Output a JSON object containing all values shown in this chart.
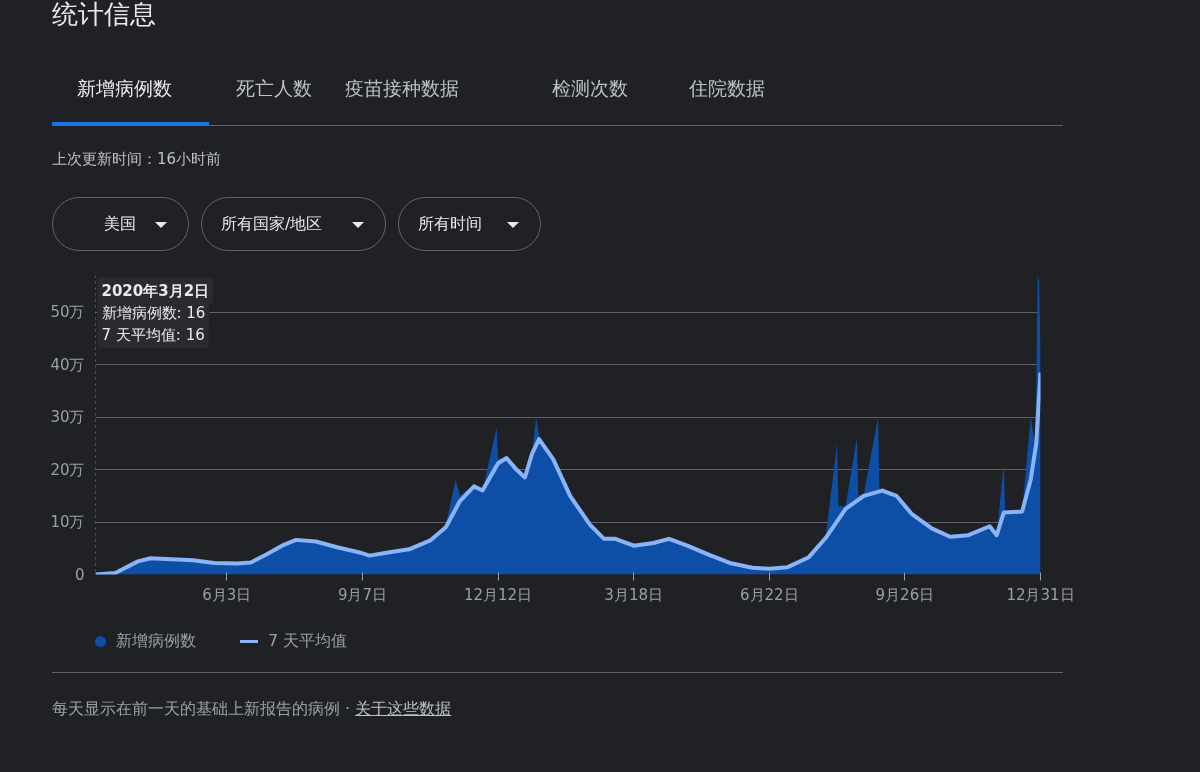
{
  "chart_data": {
    "type": "area",
    "title": "统计信息",
    "xlim": [
      "2020-03-02",
      "2021-12-31"
    ],
    "xticks": [
      {
        "value": "2020-06-03",
        "label": "6月3日"
      },
      {
        "value": "2020-09-07",
        "label": "9月7日"
      },
      {
        "value": "2020-12-12",
        "label": "12月12日"
      },
      {
        "value": "2021-03-18",
        "label": "3月18日"
      },
      {
        "value": "2021-06-22",
        "label": "6月22日"
      },
      {
        "value": "2021-09-26",
        "label": "9月26日"
      },
      {
        "value": "2021-12-31",
        "label": "12月31日"
      }
    ],
    "ylim": [
      0,
      57
    ],
    "yticks": [
      0,
      {
        "value": 10,
        "label": "10万"
      },
      {
        "value": 20,
        "label": "20万"
      },
      {
        "value": 30,
        "label": "30万"
      },
      {
        "value": 40,
        "label": "40万"
      },
      {
        "value": 50,
        "label": "50万"
      }
    ],
    "grid": "y",
    "legend": "bottom left",
    "series": [
      {
        "name": "新增病例数",
        "color": "#0d4ea6",
        "x": [
          "2020-03-02",
          "2020-03-16",
          "2020-04-01",
          "2020-04-10",
          "2020-04-25",
          "2020-05-10",
          "2020-05-25",
          "2020-06-10",
          "2020-06-20",
          "2020-07-01",
          "2020-07-12",
          "2020-07-22",
          "2020-08-05",
          "2020-08-20",
          "2020-09-05",
          "2020-09-12",
          "2020-09-25",
          "2020-10-10",
          "2020-10-25",
          "2020-11-05",
          "2020-11-12",
          "2020-11-15",
          "2020-11-25",
          "2020-12-01",
          "2020-12-11",
          "2020-12-12",
          "2020-12-18",
          "2020-12-25",
          "2020-12-31",
          "2021-01-05",
          "2021-01-08",
          "2021-01-10",
          "2021-01-20",
          "2021-02-01",
          "2021-02-15",
          "2021-02-25",
          "2021-03-05",
          "2021-03-18",
          "2021-04-01",
          "2021-04-12",
          "2021-04-25",
          "2021-05-10",
          "2021-05-25",
          "2021-06-10",
          "2021-06-22",
          "2021-07-05",
          "2021-07-20",
          "2021-08-01",
          "2021-08-09",
          "2021-08-10",
          "2021-08-15",
          "2021-08-23",
          "2021-08-24",
          "2021-08-28",
          "2021-09-07",
          "2021-09-08",
          "2021-09-10",
          "2021-09-20",
          "2021-10-01",
          "2021-10-15",
          "2021-10-28",
          "2021-11-10",
          "2021-11-25",
          "2021-11-30",
          "2021-12-05",
          "2021-12-06",
          "2021-12-18",
          "2021-12-24",
          "2021-12-27",
          "2021-12-28",
          "2021-12-29",
          "2021-12-30",
          "2021-12-31"
        ],
        "values": [
          0.0016,
          0.3,
          2.5,
          3.1,
          2.9,
          2.7,
          2.2,
          2.1,
          2.3,
          3.8,
          5.5,
          6.8,
          6.3,
          5.2,
          4.2,
          3.6,
          4.3,
          5,
          6.8,
          9.5,
          18,
          15,
          17.2,
          16,
          28,
          22,
          22.2,
          20,
          18.5,
          23,
          30,
          26.2,
          22,
          15,
          9.5,
          6.8,
          6.8,
          6,
          6,
          6.8,
          5.5,
          3.8,
          2.2,
          1.3,
          1.1,
          1.4,
          3.3,
          7.5,
          25,
          13,
          13,
          26,
          15,
          15.5,
          30,
          16,
          16.5,
          15,
          11.5,
          8.8,
          7.2,
          7.5,
          9.5,
          7.5,
          21,
          11.8,
          12,
          30,
          25,
          36,
          57,
          56,
          44
        ]
      },
      {
        "name": "7 天平均值",
        "type": "line",
        "color": "#8ab4f8",
        "x": [
          "2020-03-02",
          "2020-03-16",
          "2020-04-01",
          "2020-04-10",
          "2020-04-25",
          "2020-05-10",
          "2020-05-25",
          "2020-06-10",
          "2020-06-20",
          "2020-07-01",
          "2020-07-12",
          "2020-07-22",
          "2020-08-05",
          "2020-08-20",
          "2020-09-05",
          "2020-09-12",
          "2020-09-25",
          "2020-10-10",
          "2020-10-25",
          "2020-11-05",
          "2020-11-15",
          "2020-11-25",
          "2020-12-01",
          "2020-12-12",
          "2020-12-18",
          "2020-12-25",
          "2020-12-31",
          "2021-01-05",
          "2021-01-10",
          "2021-01-20",
          "2021-02-01",
          "2021-02-15",
          "2021-02-25",
          "2021-03-05",
          "2021-03-18",
          "2021-04-01",
          "2021-04-12",
          "2021-04-25",
          "2021-05-10",
          "2021-05-25",
          "2021-06-10",
          "2021-06-22",
          "2021-07-05",
          "2021-07-20",
          "2021-08-01",
          "2021-08-15",
          "2021-08-28",
          "2021-09-10",
          "2021-09-20",
          "2021-10-01",
          "2021-10-15",
          "2021-10-28",
          "2021-11-10",
          "2021-11-25",
          "2021-11-30",
          "2021-12-05",
          "2021-12-18",
          "2021-12-24",
          "2021-12-28",
          "2021-12-31"
        ],
        "values": [
          0.0016,
          0.3,
          2.5,
          3.1,
          2.9,
          2.7,
          2.2,
          2.1,
          2.3,
          3.8,
          5.5,
          6.6,
          6.3,
          5.2,
          4.2,
          3.6,
          4.2,
          4.8,
          6.5,
          9,
          14,
          16.8,
          16,
          21.2,
          22.2,
          20,
          18.5,
          23,
          25.8,
          22,
          15,
          9.5,
          6.8,
          6.8,
          5.5,
          6,
          6.8,
          5.5,
          3.8,
          2.2,
          1.3,
          1.1,
          1.4,
          3.3,
          7,
          12.5,
          15,
          16,
          15,
          11.5,
          8.8,
          7.2,
          7.5,
          9.2,
          7.5,
          11.8,
          12,
          18,
          25,
          38.5
        ]
      }
    ],
    "ref_lines": [
      {
        "axis": "x",
        "value": "2020-03-02",
        "label": null,
        "color": "#9aa0a6",
        "line_style": "dotted"
      }
    ],
    "annotations": [
      "新增病例数",
      "死亡人数",
      "疫苗接种数据",
      "检测次数",
      "住院数据",
      "上次更新时间：16小时前",
      "美国",
      "所有国家/地区",
      "所有时间",
      "每天显示在前一天的基础上新报告的病例 ·",
      "关于这些数据",
      "2020年3月2日",
      "新增病例数: 16",
      "7 天平均值: 16"
    ]
  }
}
